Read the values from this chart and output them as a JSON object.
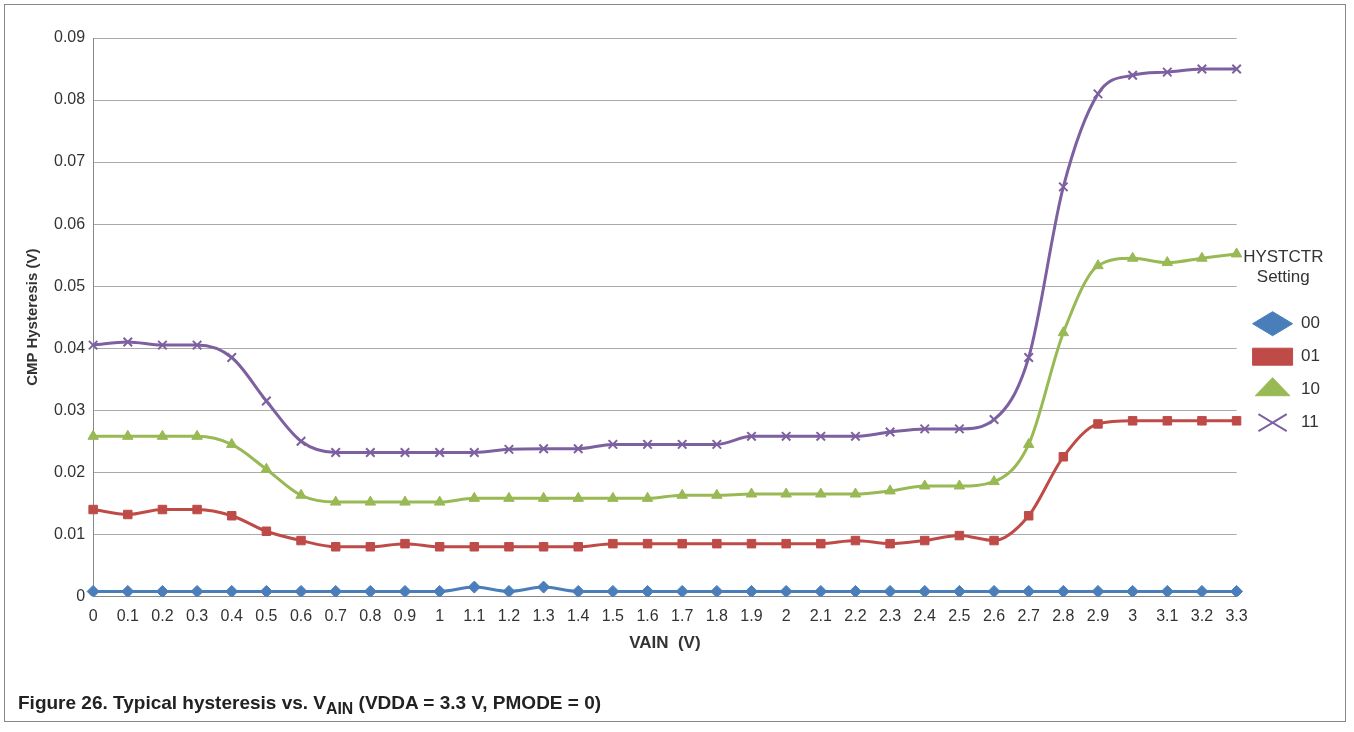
{
  "chart_data": {
    "type": "line",
    "xlabel": "VAIN  (V)",
    "ylabel": "CMP Hysteresis (V)",
    "legend_title": "HYSTCTR Setting",
    "legend": "right",
    "grid": "y",
    "annotations": [
      "Figure 26.  Typical hysteresis vs. V$_{AIN}$ (VDDA = 3.3 V, PMODE = 0)"
    ],
    "categories": [
      "0",
      "0.1",
      "0.2",
      "0.3",
      "0.4",
      "0.5",
      "0.6",
      "0.7",
      "0.8",
      "0.9",
      "1",
      "1.1",
      "1.2",
      "1.3",
      "1.4",
      "1.5",
      "1.6",
      "1.7",
      "1.8",
      "1.9",
      "2",
      "2.1",
      "2.2",
      "2.3",
      "2.4",
      "2.5",
      "2.6",
      "2.7",
      "2.8",
      "2.9",
      "3",
      "3.1",
      "3.2",
      "3.3"
    ],
    "ylim": [
      0,
      0.09
    ],
    "yticks": [
      0,
      0.01,
      0.02,
      0.03,
      0.04,
      0.05,
      0.06,
      0.07,
      0.08,
      0.09
    ],
    "series": [
      {
        "name": "00",
        "color": "#4a7ebb",
        "marker": "diamond",
        "values": [
          0.0008,
          0.0008,
          0.0008,
          0.0008,
          0.0008,
          0.0008,
          0.0008,
          0.0008,
          0.0008,
          0.0008,
          0.0008,
          0.0015,
          0.0008,
          0.0015,
          0.0008,
          0.0008,
          0.0008,
          0.0008,
          0.0008,
          0.0008,
          0.0008,
          0.0008,
          0.0008,
          0.0008,
          0.0008,
          0.0008,
          0.0008,
          0.0008,
          0.0008,
          0.0008,
          0.0008,
          0.0008,
          0.0008,
          0.0008
        ]
      },
      {
        "name": "01",
        "color": "#be4b48",
        "marker": "square",
        "values": [
          0.014,
          0.0132,
          0.014,
          0.014,
          0.013,
          0.0105,
          0.009,
          0.008,
          0.008,
          0.0085,
          0.008,
          0.008,
          0.008,
          0.008,
          0.008,
          0.0085,
          0.0085,
          0.0085,
          0.0085,
          0.0085,
          0.0085,
          0.0085,
          0.009,
          0.0085,
          0.009,
          0.0098,
          0.009,
          0.013,
          0.0225,
          0.0278,
          0.0283,
          0.0283,
          0.0283,
          0.0283
        ]
      },
      {
        "name": "10",
        "color": "#98b954",
        "marker": "triangle",
        "values": [
          0.0258,
          0.0258,
          0.0258,
          0.0258,
          0.0245,
          0.0205,
          0.0163,
          0.0152,
          0.0152,
          0.0152,
          0.0152,
          0.0158,
          0.0158,
          0.0158,
          0.0158,
          0.0158,
          0.0158,
          0.0163,
          0.0163,
          0.0165,
          0.0165,
          0.0165,
          0.0165,
          0.017,
          0.0178,
          0.0178,
          0.0185,
          0.0245,
          0.0425,
          0.0533,
          0.0545,
          0.0538,
          0.0545,
          0.0552
        ]
      },
      {
        "name": "11",
        "color": "#7d60a0",
        "marker": "cross",
        "values": [
          0.0405,
          0.041,
          0.0405,
          0.0405,
          0.0385,
          0.0315,
          0.025,
          0.0232,
          0.0232,
          0.0232,
          0.0232,
          0.0232,
          0.0237,
          0.0238,
          0.0238,
          0.0245,
          0.0245,
          0.0245,
          0.0245,
          0.0258,
          0.0258,
          0.0258,
          0.0258,
          0.0265,
          0.027,
          0.027,
          0.0285,
          0.0385,
          0.066,
          0.081,
          0.084,
          0.0845,
          0.085,
          0.085
        ]
      }
    ]
  }
}
